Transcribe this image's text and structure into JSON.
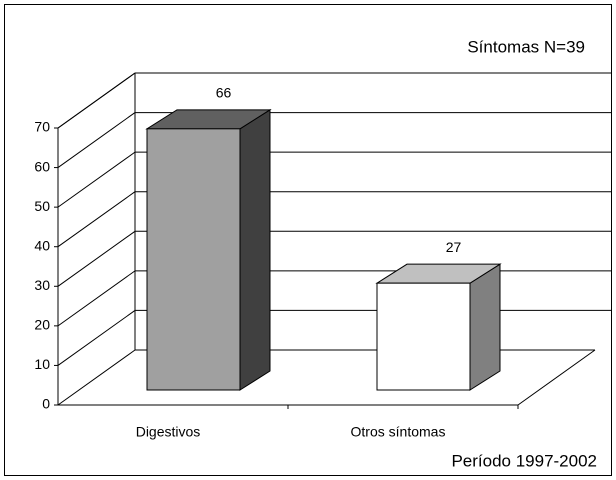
{
  "chart_data": {
    "type": "bar3d",
    "title": "Síntomas N=39",
    "annotation": "Período 1997-2002",
    "categories": [
      "Digestivos",
      "Otros síntomas"
    ],
    "values": [
      66,
      27
    ],
    "colors": [
      {
        "front": "#a0a0a0",
        "top": "#606060",
        "side": "#404040"
      },
      {
        "front": "#ffffff",
        "top": "#c0c0c0",
        "side": "#808080"
      }
    ],
    "ylim": [
      0,
      70
    ],
    "yticks": [
      0,
      10,
      20,
      30,
      40,
      50,
      60,
      70
    ],
    "grid": true
  }
}
